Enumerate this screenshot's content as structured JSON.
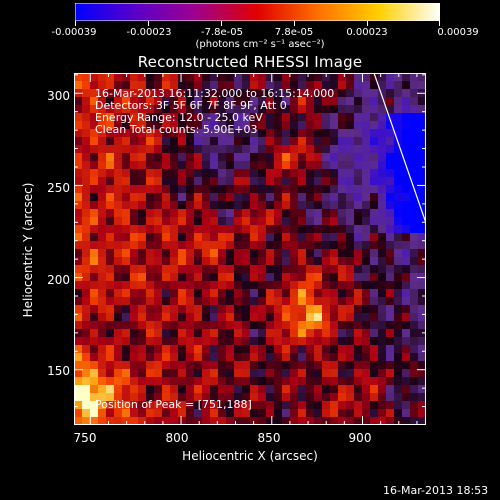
{
  "colorbar": {
    "ticks": [
      "-0.00039",
      "-0.00023",
      "-7.8e-05",
      "7.8e-05",
      "0.00023",
      "0.00039"
    ],
    "unit_label": "(photons cm⁻² s⁻¹ asec⁻²)",
    "colors": [
      "#0000ff",
      "#5a00c8",
      "#a0008c",
      "#e00000",
      "#ff7000",
      "#ffd000",
      "#ffffff"
    ]
  },
  "plot": {
    "title": "Reconstructed RHESSI Image",
    "xlabel": "Heliocentric X (arcsec)",
    "ylabel": "Heliocentric Y (arcsec)",
    "xticks": [
      "750",
      "800",
      "850",
      "900"
    ],
    "yticks": [
      "150",
      "200",
      "250",
      "300"
    ]
  },
  "info": {
    "time_range": "16-Mar-2013 16:11:32.000 to 16:15:14.000",
    "detectors": "Detectors: 3F 5F 6F 7F 8F 9F, Att 0",
    "energy_range": "Energy Range: 12.0 - 25.0 keV",
    "clean_counts": "Clean    Total counts: 5.90E+03",
    "peak": "Position of Peak = [751,188]"
  },
  "timestamp": "16-Mar-2013 18:53",
  "chart_data": {
    "type": "heatmap",
    "title": "Reconstructed RHESSI Image",
    "xlabel": "Heliocentric X (arcsec)",
    "ylabel": "Heliocentric Y (arcsec)",
    "xlim": [
      741,
      935
    ],
    "ylim": [
      120,
      311
    ],
    "colorbar_range": [
      -0.00039,
      0.00039
    ],
    "peak": [
      751,
      188
    ]
  }
}
